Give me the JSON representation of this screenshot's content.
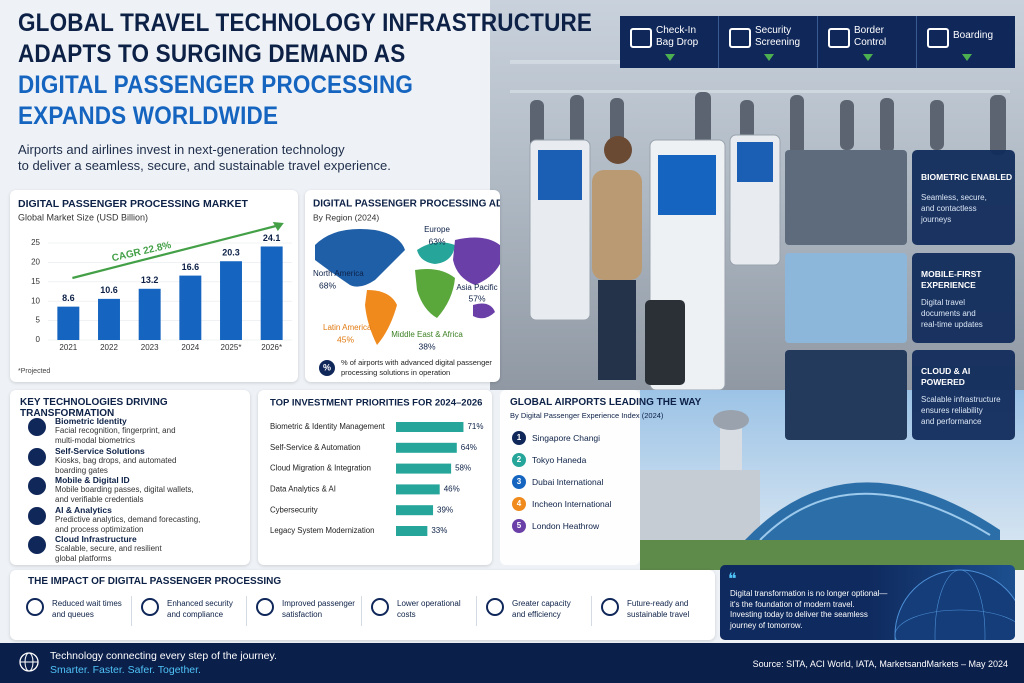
{
  "header": {
    "title_lines": [
      "GLOBAL TRAVEL TECHNOLOGY INFRASTRUCTURE",
      "ADAPTS TO SURGING DEMAND AS",
      "DIGITAL PASSENGER PROCESSING",
      "EXPANDS WORLDWIDE"
    ],
    "subtitle_lines": [
      "Airports and airlines invest in next-generation technology",
      "to deliver a seamless, secure, and sustainable travel experience."
    ]
  },
  "process_steps": [
    {
      "lines": [
        "Check-In",
        "Bag Drop"
      ]
    },
    {
      "lines": [
        "Security",
        "Screening"
      ]
    },
    {
      "lines": [
        "Border",
        "Control"
      ]
    },
    {
      "lines": [
        "Boarding"
      ]
    }
  ],
  "chart_data": [
    {
      "type": "bar",
      "title": "DIGITAL PASSENGER PROCESSING MARKET",
      "subtitle": "Global Market Size (USD Billion)",
      "categories": [
        "2021",
        "2022",
        "2023",
        "2024",
        "2025*",
        "2026*"
      ],
      "values": [
        8.6,
        10.6,
        13.2,
        16.6,
        20.3,
        24.1
      ],
      "color": "#1565c0",
      "ylim": [
        0,
        25
      ],
      "yticks": [
        0,
        5,
        10,
        15,
        20,
        25
      ],
      "annotation": "CAGR 22.8%",
      "note": "*Projected"
    },
    {
      "type": "barh",
      "title": "TOP INVESTMENT PRIORITIES FOR 2024–2026",
      "categories": [
        "Biometric & Identity Management",
        "Self-Service & Automation",
        "Cloud Migration & Integration",
        "Data Analytics & AI",
        "Cybersecurity",
        "Legacy System Modernization"
      ],
      "values": [
        71,
        64,
        58,
        46,
        39,
        33
      ],
      "value_labels": [
        "71%",
        "64%",
        "58%",
        "46%",
        "39%",
        "33%"
      ],
      "color": "#26a69a"
    }
  ],
  "adoption": {
    "title": "DIGITAL PASSENGER PROCESSING ADOPTION",
    "subtitle": "By Region (2024)",
    "regions": [
      {
        "name": "North America",
        "value": "68%"
      },
      {
        "name": "Europe",
        "value": "63%"
      },
      {
        "name": "Asia Pacific",
        "value": "57%"
      },
      {
        "name": "Latin America",
        "value": "45%"
      },
      {
        "name": "Middle East & Africa",
        "value": "38%"
      }
    ],
    "legend_icon": "%",
    "legend_lines": [
      "% of airports with advanced digital passenger",
      "processing solutions in operation"
    ]
  },
  "technologies": {
    "title": "KEY TECHNOLOGIES DRIVING TRANSFORMATION",
    "items": [
      {
        "name": "Biometric Identity",
        "lines": [
          "Facial recognition, fingerprint, and",
          "multi-modal biometrics"
        ]
      },
      {
        "name": "Self-Service Solutions",
        "lines": [
          "Kiosks, bag drops, and automated",
          "boarding gates"
        ]
      },
      {
        "name": "Mobile & Digital ID",
        "lines": [
          "Mobile boarding passes, digital wallets,",
          "and verifiable credentials"
        ]
      },
      {
        "name": "AI & Analytics",
        "lines": [
          "Predictive analytics, demand forecasting,",
          "and process optimization"
        ]
      },
      {
        "name": "Cloud Infrastructure",
        "lines": [
          "Scalable, secure, and resilient",
          "global platforms"
        ]
      }
    ]
  },
  "airports": {
    "title": "GLOBAL AIRPORTS LEADING THE WAY",
    "subtitle": "By Digital Passenger Experience Index (2024)",
    "items": [
      {
        "rank": "1",
        "name": "Singapore Changi"
      },
      {
        "rank": "2",
        "name": "Tokyo Haneda"
      },
      {
        "rank": "3",
        "name": "Dubai International"
      },
      {
        "rank": "4",
        "name": "Incheon International"
      },
      {
        "rank": "5",
        "name": "London Heathrow"
      }
    ]
  },
  "features": [
    {
      "title_lines": [
        "BIOMETRIC ENABLED"
      ],
      "lines": [
        "Seamless, secure,",
        "and contactless",
        "journeys"
      ]
    },
    {
      "title_lines": [
        "MOBILE-FIRST",
        "EXPERIENCE"
      ],
      "lines": [
        "Digital travel",
        "documents and",
        "real-time updates"
      ]
    },
    {
      "title_lines": [
        "CLOUD & AI",
        "POWERED"
      ],
      "lines": [
        "Scalable infrastructure",
        "ensures reliability",
        "and performance"
      ]
    }
  ],
  "impact": {
    "title": "THE IMPACT OF DIGITAL PASSENGER PROCESSING",
    "items": [
      {
        "lines": [
          "Reduced wait times",
          "and queues"
        ]
      },
      {
        "lines": [
          "Enhanced security",
          "and compliance"
        ]
      },
      {
        "lines": [
          "Improved passenger",
          "satisfaction"
        ]
      },
      {
        "lines": [
          "Lower operational",
          "costs"
        ]
      },
      {
        "lines": [
          "Greater capacity",
          "and efficiency"
        ]
      },
      {
        "lines": [
          "Future-ready and",
          "sustainable travel"
        ]
      }
    ]
  },
  "quote": {
    "mark": "❝",
    "lines": [
      "Digital transformation is no longer optional—",
      "it's the foundation of modern travel.",
      "Investing today to deliver the seamless",
      "journey of tomorrow."
    ]
  },
  "footer": {
    "tagline": "Technology connecting every step of the journey.",
    "slogan": "Smarter. Faster. Safer. Together.",
    "source": "Source: SITA, ACI World, IATA, MarketsandMarkets – May 2024"
  }
}
